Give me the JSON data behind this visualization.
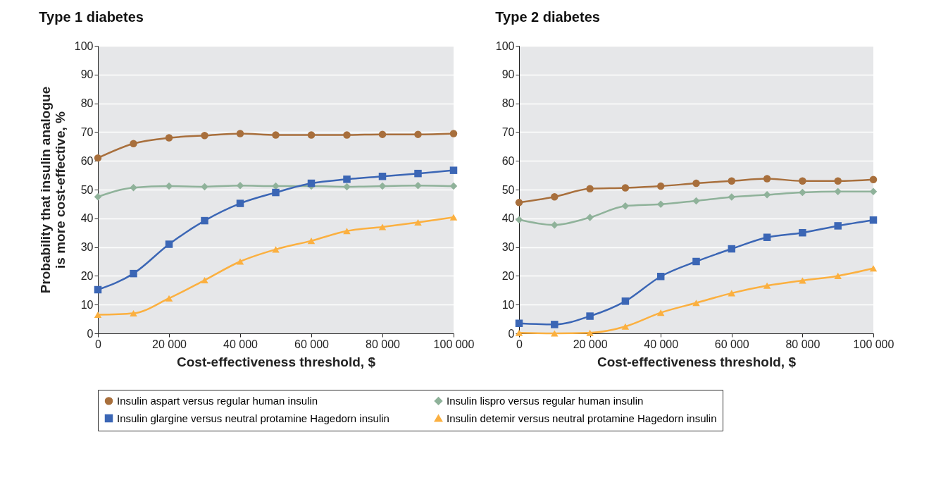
{
  "chart_data": [
    {
      "type": "line",
      "title": "Type 1 diabetes",
      "xlabel": "Cost-effectiveness threshold, $",
      "ylabel": "Probability that insulin analogue\nis more cost-effective, %",
      "x": [
        0,
        10000,
        20000,
        30000,
        40000,
        50000,
        60000,
        70000,
        80000,
        90000,
        100000
      ],
      "xlim": [
        0,
        100000
      ],
      "xticks": [
        0,
        {
          "value": 20000,
          "label": "20 000"
        },
        {
          "value": 40000,
          "label": "40 000"
        },
        {
          "value": 60000,
          "label": "60 000"
        },
        {
          "value": 80000,
          "label": "80 000"
        },
        {
          "value": 100000,
          "label": "100 000"
        }
      ],
      "ylim": [
        0,
        100
      ],
      "yticks": [
        0,
        10,
        20,
        30,
        40,
        50,
        60,
        70,
        80,
        90,
        100
      ],
      "grid": "y",
      "legend": "bottom",
      "series": [
        {
          "name": "Insulin aspart versus regular human insulin",
          "color": "#a86f3c",
          "marker": "circle",
          "values": [
            61,
            66,
            68,
            68.8,
            69.5,
            69,
            69,
            69,
            69.2,
            69.2,
            69.5
          ]
        },
        {
          "name": "Insulin lispro versus regular human insulin",
          "color": "#8fb29a",
          "marker": "diamond",
          "values": [
            47.5,
            50.7,
            51.2,
            51,
            51.4,
            51.2,
            51.2,
            51,
            51.2,
            51.4,
            51.2
          ]
        },
        {
          "name": "Insulin glargine versus neutral protamine Hagedorn insulin",
          "color": "#3b66b5",
          "marker": "square",
          "values": [
            15.2,
            20.8,
            31,
            39.2,
            45.2,
            49,
            52.2,
            53.6,
            54.6,
            55.6,
            56.7
          ]
        },
        {
          "name": "Insulin detemir versus neutral protamine Hagedorn insulin",
          "color": "#fbb040",
          "marker": "triangle",
          "values": [
            6.5,
            7,
            12.2,
            18.5,
            25,
            29.2,
            32.2,
            35.6,
            37,
            38.6,
            40.4
          ]
        }
      ]
    },
    {
      "type": "line",
      "title": "Type 2 diabetes",
      "xlabel": "Cost-effectiveness threshold, $",
      "x": [
        0,
        10000,
        20000,
        30000,
        40000,
        50000,
        60000,
        70000,
        80000,
        90000,
        100000
      ],
      "xlim": [
        0,
        100000
      ],
      "xticks": [
        0,
        {
          "value": 20000,
          "label": "20 000"
        },
        {
          "value": 40000,
          "label": "40 000"
        },
        {
          "value": 60000,
          "label": "60 000"
        },
        {
          "value": 80000,
          "label": "80 000"
        },
        {
          "value": 100000,
          "label": "100 000"
        }
      ],
      "ylim": [
        0,
        100
      ],
      "yticks": [
        0,
        10,
        20,
        30,
        40,
        50,
        60,
        70,
        80,
        90,
        100
      ],
      "grid": "y",
      "series": [
        {
          "name": "Insulin aspart versus regular human insulin",
          "color": "#a86f3c",
          "marker": "circle",
          "values": [
            45.5,
            47.5,
            50.3,
            50.6,
            51.2,
            52.2,
            53,
            53.8,
            53,
            53,
            53.5
          ]
        },
        {
          "name": "Insulin lispro versus regular human insulin",
          "color": "#8fb29a",
          "marker": "diamond",
          "values": [
            39.5,
            37.7,
            40.3,
            44.3,
            44.9,
            46.1,
            47.4,
            48.2,
            49,
            49.3,
            49.3
          ]
        },
        {
          "name": "Insulin glargine versus neutral protamine Hagedorn insulin",
          "color": "#3b66b5",
          "marker": "square",
          "values": [
            3.5,
            3.1,
            6,
            11.2,
            19.8,
            25,
            29.4,
            33.4,
            35,
            37.4,
            39.4
          ]
        },
        {
          "name": "Insulin detemir versus neutral protamine Hagedorn insulin",
          "color": "#fbb040",
          "marker": "triangle",
          "values": [
            0.2,
            0,
            0.2,
            2.4,
            7.2,
            10.6,
            14,
            16.6,
            18.4,
            20,
            22.6
          ]
        }
      ]
    }
  ]
}
